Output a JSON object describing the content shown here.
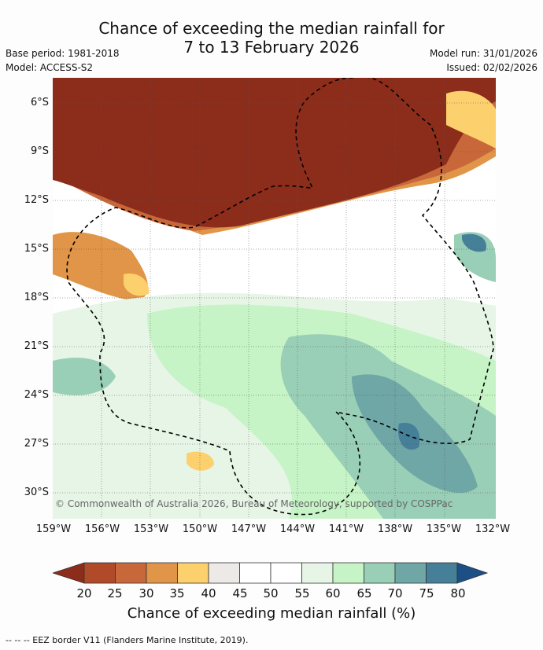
{
  "header": {
    "title_line1": "Chance of exceeding the median rainfall for",
    "title_line2": "7 to 13 February 2026",
    "base_period": "Base period: 1981-2018",
    "model": "Model: ACCESS-S2",
    "model_run": "Model run: 31/01/2026",
    "issued": "Issued: 02/02/2026"
  },
  "map": {
    "lat_labels": [
      "6°S",
      "9°S",
      "12°S",
      "15°S",
      "18°S",
      "21°S",
      "24°S",
      "27°S",
      "30°S"
    ],
    "lon_labels": [
      "159°W",
      "156°W",
      "153°W",
      "150°W",
      "147°W",
      "144°W",
      "141°W",
      "138°W",
      "135°W",
      "132°W"
    ],
    "copyright": "© Commonwealth of Australia 2026, Bureau of Meteorology, supported by COSPPac"
  },
  "colorbar": {
    "ticks": [
      "20",
      "25",
      "30",
      "35",
      "40",
      "45",
      "50",
      "55",
      "60",
      "65",
      "70",
      "75",
      "80"
    ],
    "colors": [
      "#8c2d1c",
      "#b04a28",
      "#c8683a",
      "#e09548",
      "#fdd06e",
      "#ece9e6",
      "#ffffff",
      "#ffffff",
      "#e6f5e6",
      "#c6f4c6",
      "#99cfb6",
      "#6fa6a6",
      "#457f98",
      "#1b4f86"
    ],
    "title": "Chance of exceeding median rainfall (%)"
  },
  "footer": {
    "eez_note": "--  --  -- EEZ border V11 (Flanders Marine Institute, 2019)."
  }
}
